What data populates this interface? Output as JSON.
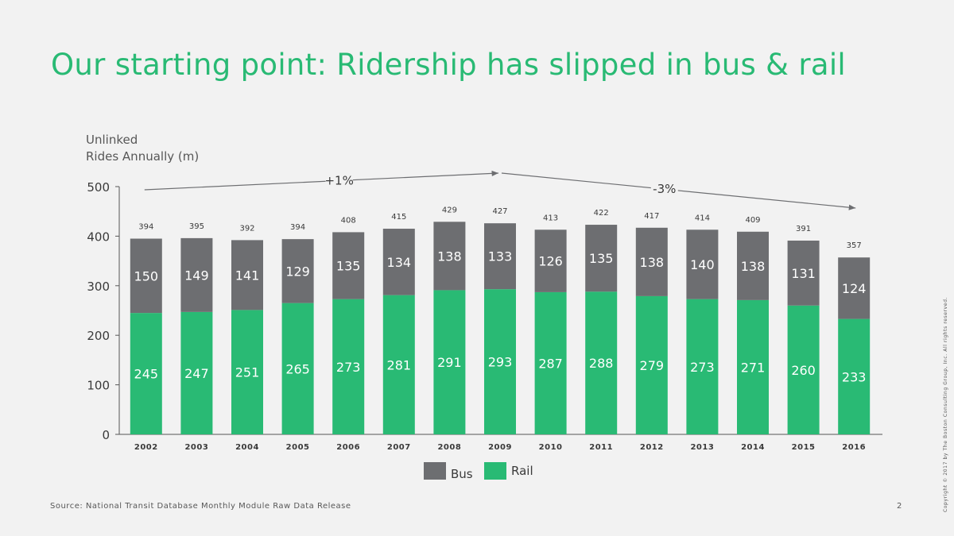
{
  "slide": {
    "title": "Our starting point: Ridership has slipped in bus & rail",
    "source": "Source: National Transit Database Monthly Module Raw Data Release",
    "page_number": "2",
    "copyright": "Copyright © 2017 by The Boston Consulting Group, Inc. All rights reserved.",
    "colors": {
      "title": "#29ba74",
      "background": "#f2f2f2",
      "text": "#575757"
    }
  },
  "chart_data": {
    "type": "bar",
    "stacked": true,
    "ylabel_line1": "Unlinked",
    "ylabel_line2": "Rides Annually (m)",
    "ylim": [
      0,
      500
    ],
    "yticks": [
      0,
      100,
      200,
      300,
      400,
      500
    ],
    "categories": [
      "2002",
      "2003",
      "2004",
      "2005",
      "2006",
      "2007",
      "2008",
      "2009",
      "2010",
      "2011",
      "2012",
      "2013",
      "2014",
      "2015",
      "2016"
    ],
    "totals": [
      394,
      395,
      392,
      394,
      408,
      415,
      429,
      427,
      413,
      422,
      417,
      414,
      409,
      391,
      357
    ],
    "series": [
      {
        "name": "Rail",
        "color": "#29ba74",
        "values": [
          245,
          247,
          251,
          265,
          273,
          281,
          291,
          293,
          287,
          288,
          279,
          273,
          271,
          260,
          233
        ]
      },
      {
        "name": "Bus",
        "color": "#6d6e71",
        "values": [
          150,
          149,
          141,
          129,
          135,
          134,
          138,
          133,
          126,
          135,
          138,
          140,
          138,
          131,
          124
        ]
      }
    ],
    "legend": [
      {
        "name": "Bus",
        "color": "#6d6e71"
      },
      {
        "name": "Rail",
        "color": "#29ba74"
      }
    ],
    "annotations": [
      {
        "label": "+1%",
        "from_category": "2002",
        "to_category": "2009"
      },
      {
        "label": "-3%",
        "from_category": "2009",
        "to_category": "2016"
      }
    ]
  }
}
